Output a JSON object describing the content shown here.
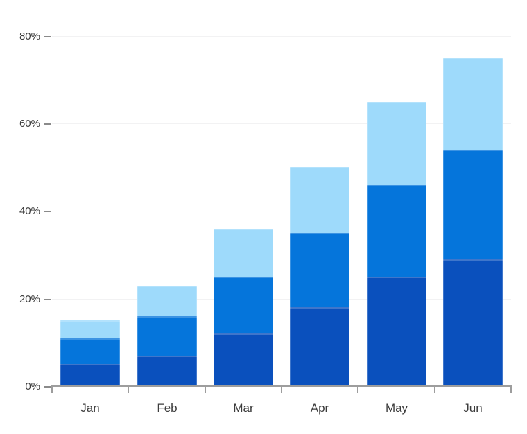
{
  "chart_data": {
    "type": "bar",
    "stacked": true,
    "title": "",
    "categories": [
      "Jan",
      "Feb",
      "Mar",
      "Apr",
      "May",
      "Jun"
    ],
    "series": [
      {
        "name": "bottom-dark-blue-segment",
        "color": "#0a50bd",
        "values": [
          5,
          7,
          12,
          18,
          25,
          29
        ]
      },
      {
        "name": "middle-medium-blue-segment",
        "color": "#0575db",
        "values": [
          6,
          9,
          13,
          17,
          21,
          25
        ]
      },
      {
        "name": "top-light-blue-segment",
        "color": "#9edafb",
        "values": [
          4,
          7,
          11,
          15,
          19,
          21
        ]
      }
    ],
    "stack_totals": [
      15,
      23,
      36,
      50,
      65,
      75
    ],
    "xlabel": "",
    "ylabel": "",
    "ylim": [
      0,
      80
    ],
    "y_ticks": [
      {
        "label": "0%",
        "value": 0
      },
      {
        "label": "20%",
        "value": 20
      },
      {
        "label": "40%",
        "value": 40
      },
      {
        "label": "60%",
        "value": 60
      },
      {
        "label": "80%",
        "value": 80
      }
    ],
    "grid": true,
    "legend_position": "none"
  },
  "styles": {
    "background": "#ffffff",
    "axis_line_color": "#9d9d9d",
    "tick_dash_color": "#8a8a8a",
    "gridline_color": "#f2f2f3",
    "label_color": "#3c3c3c"
  }
}
